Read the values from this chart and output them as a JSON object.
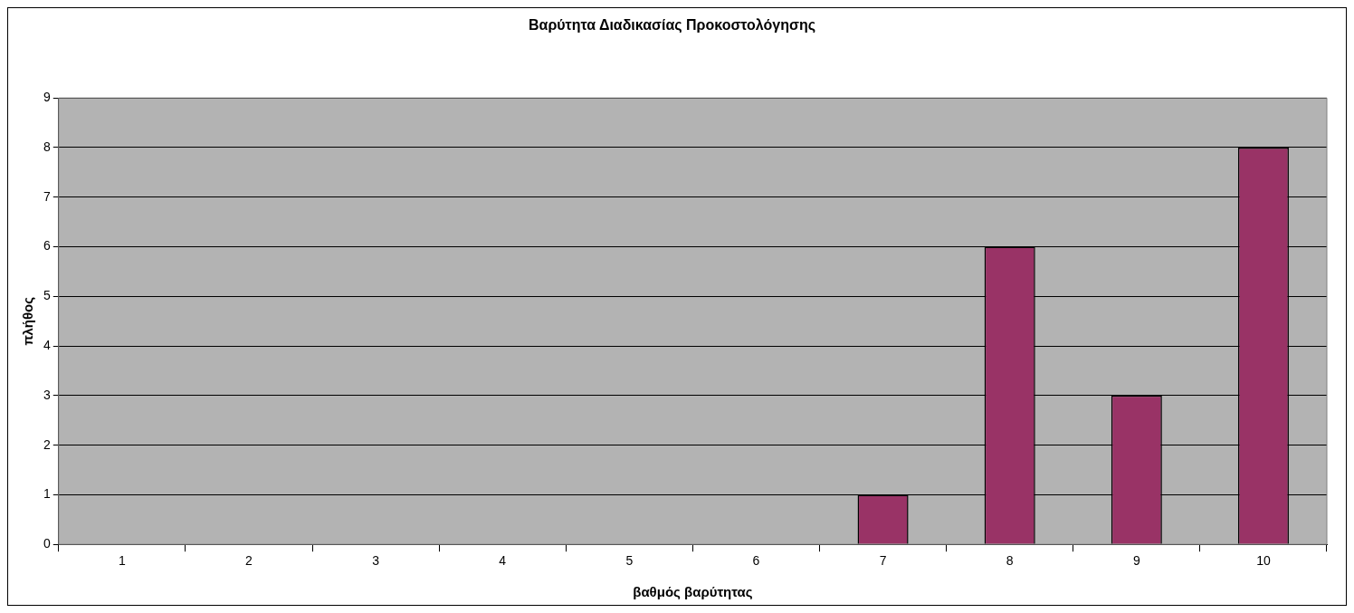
{
  "chart_data": {
    "type": "bar",
    "title": "Βαρύτητα Διαδικασίας Προκοστολόγησης",
    "xlabel": "βαθμός βαρύτητας",
    "ylabel": "πλήθος",
    "categories": [
      "1",
      "2",
      "3",
      "4",
      "5",
      "6",
      "7",
      "8",
      "9",
      "10"
    ],
    "values": [
      0,
      0,
      0,
      0,
      0,
      0,
      1,
      6,
      3,
      8
    ],
    "color": "#993366",
    "ylim": [
      0,
      9
    ],
    "yticks": [
      0,
      1,
      2,
      3,
      4,
      5,
      6,
      7,
      8,
      9
    ],
    "grid": "y",
    "legend": false
  }
}
